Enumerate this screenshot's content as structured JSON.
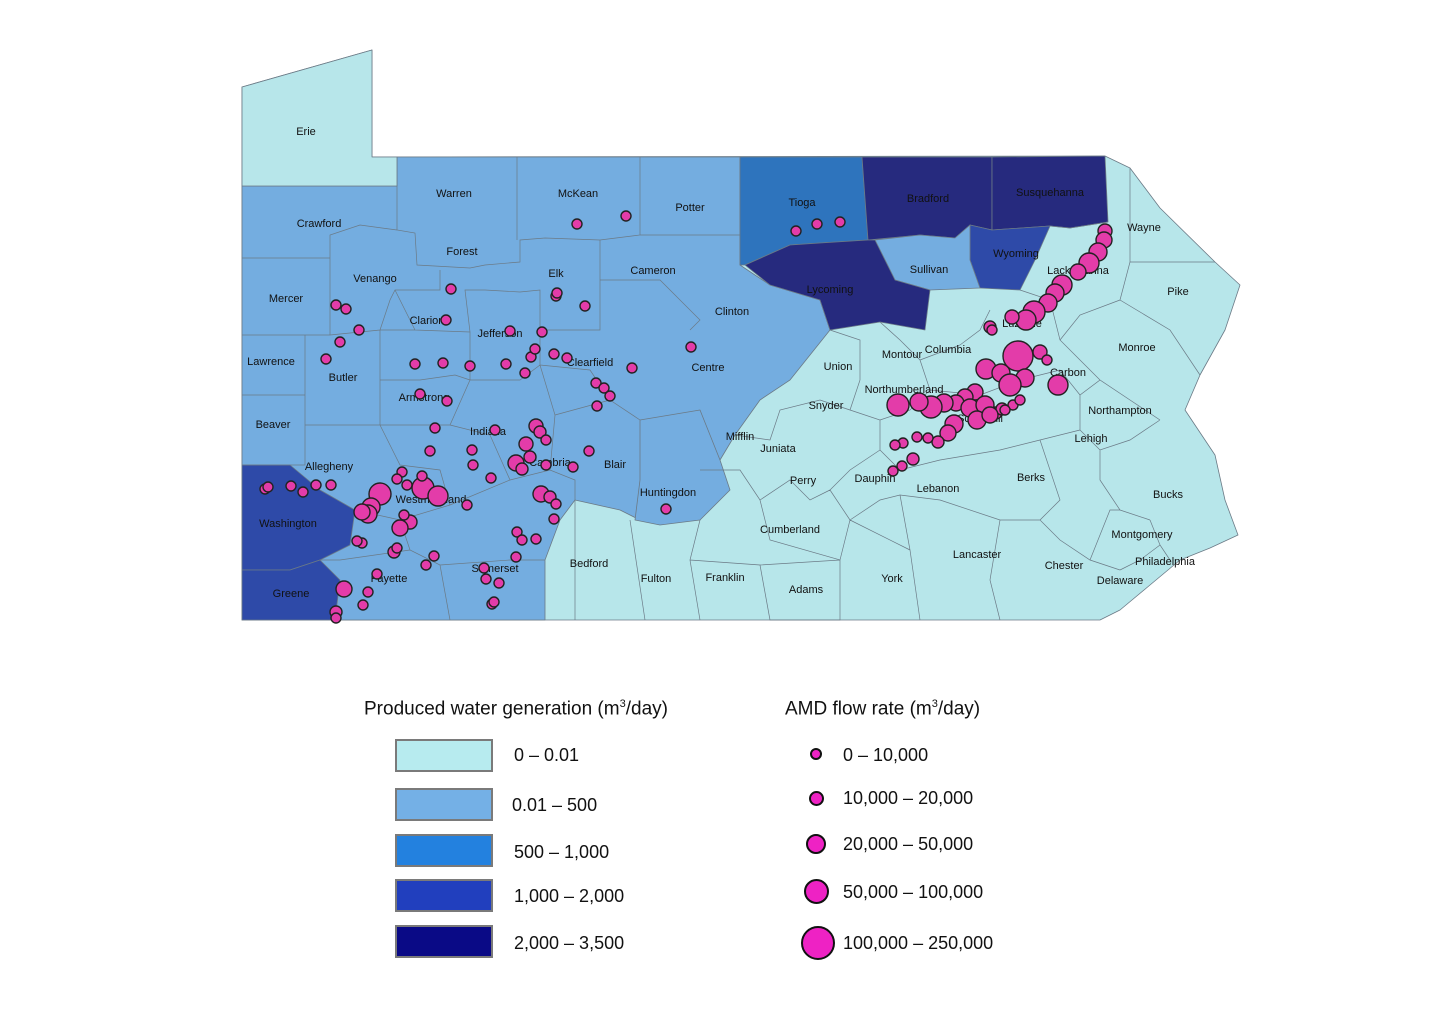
{
  "colors": {
    "class_0": "#b7e6ea",
    "class_1": "#74ade0",
    "class_2": "#2378c8",
    "class_3": "#243f9c",
    "class_4": "#262a7e",
    "border": "#6b7a86",
    "amd_fill": "#e33ca9",
    "amd_stroke": "#222222"
  },
  "counties": {
    "erie": "Erie",
    "warren": "Warren",
    "mckean": "McKean",
    "potter": "Potter",
    "tioga": "Tioga",
    "bradford": "Bradford",
    "susquehanna": "Susquehanna",
    "wayne": "Wayne",
    "crawford": "Crawford",
    "forest": "Forest",
    "elk": "Elk",
    "cameron": "Cameron",
    "venango": "Venango",
    "mercer": "Mercer",
    "clarion": "Clarion",
    "jefferson": "Jefferson",
    "clinton": "Clinton",
    "lycoming": "Lycoming",
    "sullivan": "Sullivan",
    "wyoming": "Wyoming",
    "lackawanna": "Lackawanna",
    "pike": "Pike",
    "luzerne": "Luzerne",
    "lawrence": "Lawrence",
    "butler": "Butler",
    "clearfield": "Clearfield",
    "centre": "Centre",
    "montour": "Montour",
    "columbia": "Columbia",
    "union": "Union",
    "monroe": "Monroe",
    "carbon": "Carbon",
    "northumberland": "Northumberland",
    "snyder": "Snyder",
    "armstrong": "Armstrong",
    "beaver": "Beaver",
    "indiana": "Indiana",
    "mifflin": "Mifflin",
    "juniata": "Juniata",
    "northampton": "Northampton",
    "lehigh": "Lehigh",
    "schuylkill": "Schuylkill",
    "allegheny": "Allegheny",
    "cambria": "Cambria",
    "blair": "Blair",
    "westmoreland": "Westmoreland",
    "perry": "Perry",
    "dauphin": "Dauphin",
    "berks": "Berks",
    "lebanon": "Lebanon",
    "huntingdon": "Huntingdon",
    "bucks": "Bucks",
    "washington": "Washington",
    "cumberland": "Cumberland",
    "montgomery": "Montgomery",
    "lancaster": "Lancaster",
    "bedford": "Bedford",
    "somerset": "Somerset",
    "philadelphia": "Philadelphia",
    "fayette": "Fayette",
    "chester": "Chester",
    "fulton": "Fulton",
    "franklin": "Franklin",
    "york": "York",
    "delaware": "Delaware",
    "greene": "Greene",
    "adams": "Adams"
  },
  "legend_water": {
    "title": "Produced water generation (m",
    "title_sup": "3",
    "title_tail": "/day)",
    "classes": [
      "0 – 0.01",
      "0.01 – 500",
      "500 – 1,000",
      "1,000 – 2,000",
      "2,000 – 3,500"
    ],
    "swatch_colors": [
      "#b7ebef",
      "#74b0e6",
      "#2381df",
      "#213fbe",
      "#0a0a86"
    ]
  },
  "legend_amd": {
    "title": "AMD flow rate (m",
    "title_sup": "3",
    "title_tail": "/day)",
    "classes": [
      "0 – 10,000",
      "10,000 – 20,000",
      "20,000 – 50,000",
      "50,000 – 100,000",
      "100,000 – 250,000"
    ],
    "fill": "#ee22c4"
  }
}
